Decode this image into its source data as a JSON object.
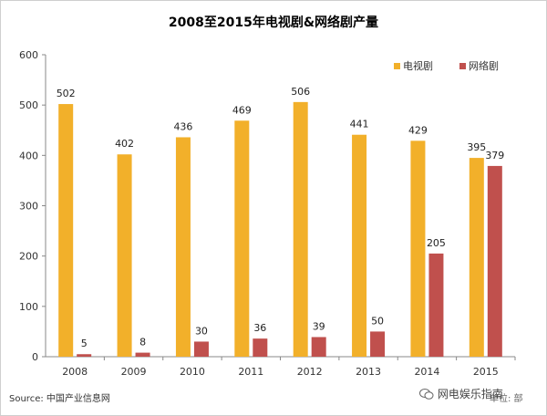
{
  "chart_data": {
    "type": "bar",
    "title": "2008至2015年电视剧&网络剧产量",
    "categories": [
      "2008",
      "2009",
      "2010",
      "2011",
      "2012",
      "2013",
      "2014",
      "2015"
    ],
    "series": [
      {
        "name": "电视剧",
        "values": [
          502,
          402,
          436,
          469,
          506,
          441,
          429,
          395
        ],
        "color": "#f2b02a"
      },
      {
        "name": "网络剧",
        "values": [
          5,
          8,
          30,
          36,
          39,
          50,
          205,
          379
        ],
        "color": "#c0504d"
      }
    ],
    "ylim": [
      0,
      600
    ],
    "yticks": [
      0,
      100,
      200,
      300,
      400,
      500,
      600
    ],
    "grid": false,
    "legend_position": "top-right",
    "xlabel": "",
    "ylabel": ""
  },
  "footer": {
    "source": "Source: 中国产业信息网",
    "unit": "单位: 部",
    "watermark": "网电娱乐指南"
  },
  "icons": {
    "watermark_icon": "wechat-icon"
  }
}
